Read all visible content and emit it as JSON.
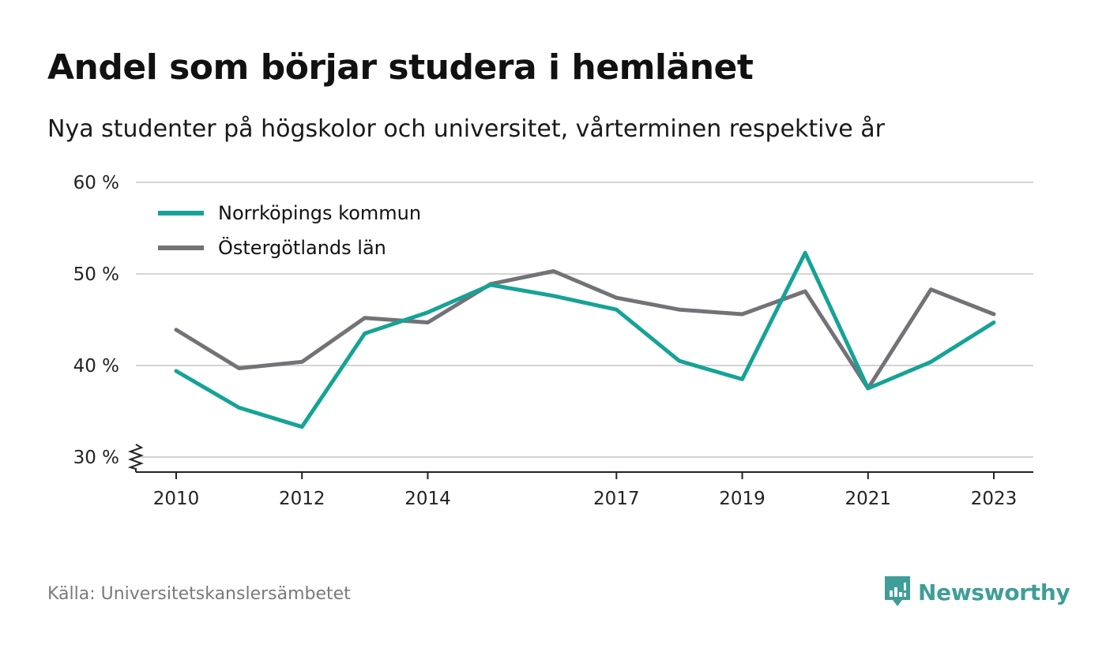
{
  "title": "Andel som börjar studera i hemlänet",
  "subtitle": "Nya studenter på högskolor och universitet, vårterminen respektive år",
  "source": "Källa: Universitetskanslersämbetet",
  "brand": {
    "name": "Newsworthy",
    "color": "#3f9e97"
  },
  "chart_data": {
    "type": "line",
    "title": "Andel som börjar studera i hemlänet",
    "subtitle": "Nya studenter på högskolor och universitet, vårterminen respektive år",
    "xlabel": "",
    "ylabel": "",
    "x": [
      2010,
      2011,
      2012,
      2013,
      2014,
      2015,
      2016,
      2017,
      2018,
      2019,
      2020,
      2021,
      2022,
      2023
    ],
    "x_ticks": [
      2010,
      2012,
      2014,
      2017,
      2019,
      2021,
      2023
    ],
    "y_ticks": [
      30,
      40,
      50,
      60
    ],
    "y_tick_labels": [
      "30 %",
      "40 %",
      "50 %",
      "60 %"
    ],
    "ylim": [
      30,
      60
    ],
    "y_axis_break": true,
    "grid": true,
    "legend_position": "top-left",
    "series": [
      {
        "name": "Norrköpings kommun",
        "color": "#16a396",
        "values": [
          39.4,
          35.4,
          33.3,
          43.5,
          45.8,
          48.8,
          47.6,
          46.1,
          40.5,
          38.5,
          52.3,
          37.5,
          40.4,
          44.7
        ]
      },
      {
        "name": "Östergötlands län",
        "color": "#737277",
        "values": [
          43.9,
          39.7,
          40.4,
          45.2,
          44.7,
          48.9,
          50.3,
          47.4,
          46.1,
          45.6,
          48.1,
          37.5,
          48.3,
          45.6
        ]
      }
    ]
  }
}
